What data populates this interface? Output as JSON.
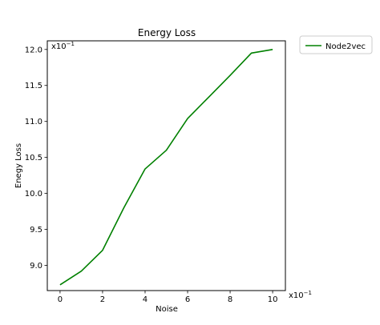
{
  "chart_data": {
    "type": "line",
    "title": "Energy Loss",
    "xlabel": "Noise",
    "ylabel": "Enegy Loss",
    "x_multiplier_label": "x10",
    "x_multiplier_exp": "−1",
    "y_multiplier_label": "x10",
    "y_multiplier_exp": "−1",
    "xlim": [
      -0.6,
      10.6
    ],
    "ylim": [
      8.65,
      12.12
    ],
    "xticks": [
      0,
      2,
      4,
      6,
      8,
      10
    ],
    "xtick_labels": [
      "0",
      "2",
      "4",
      "6",
      "8",
      "10"
    ],
    "yticks": [
      9.0,
      9.5,
      10.0,
      10.5,
      11.0,
      11.5,
      12.0
    ],
    "ytick_labels": [
      "9.0",
      "9.5",
      "10.0",
      "10.5",
      "11.0",
      "11.5",
      "12.0"
    ],
    "grid": false,
    "legend_position": "outside-top-right",
    "series": [
      {
        "name": "Node2vec",
        "color": "#008000",
        "x": [
          0,
          1,
          2,
          3,
          4,
          5,
          6,
          7,
          8,
          9,
          10
        ],
        "y": [
          8.73,
          8.92,
          9.21,
          9.8,
          10.34,
          10.6,
          11.04,
          11.34,
          11.64,
          11.95,
          12.0
        ]
      }
    ]
  }
}
